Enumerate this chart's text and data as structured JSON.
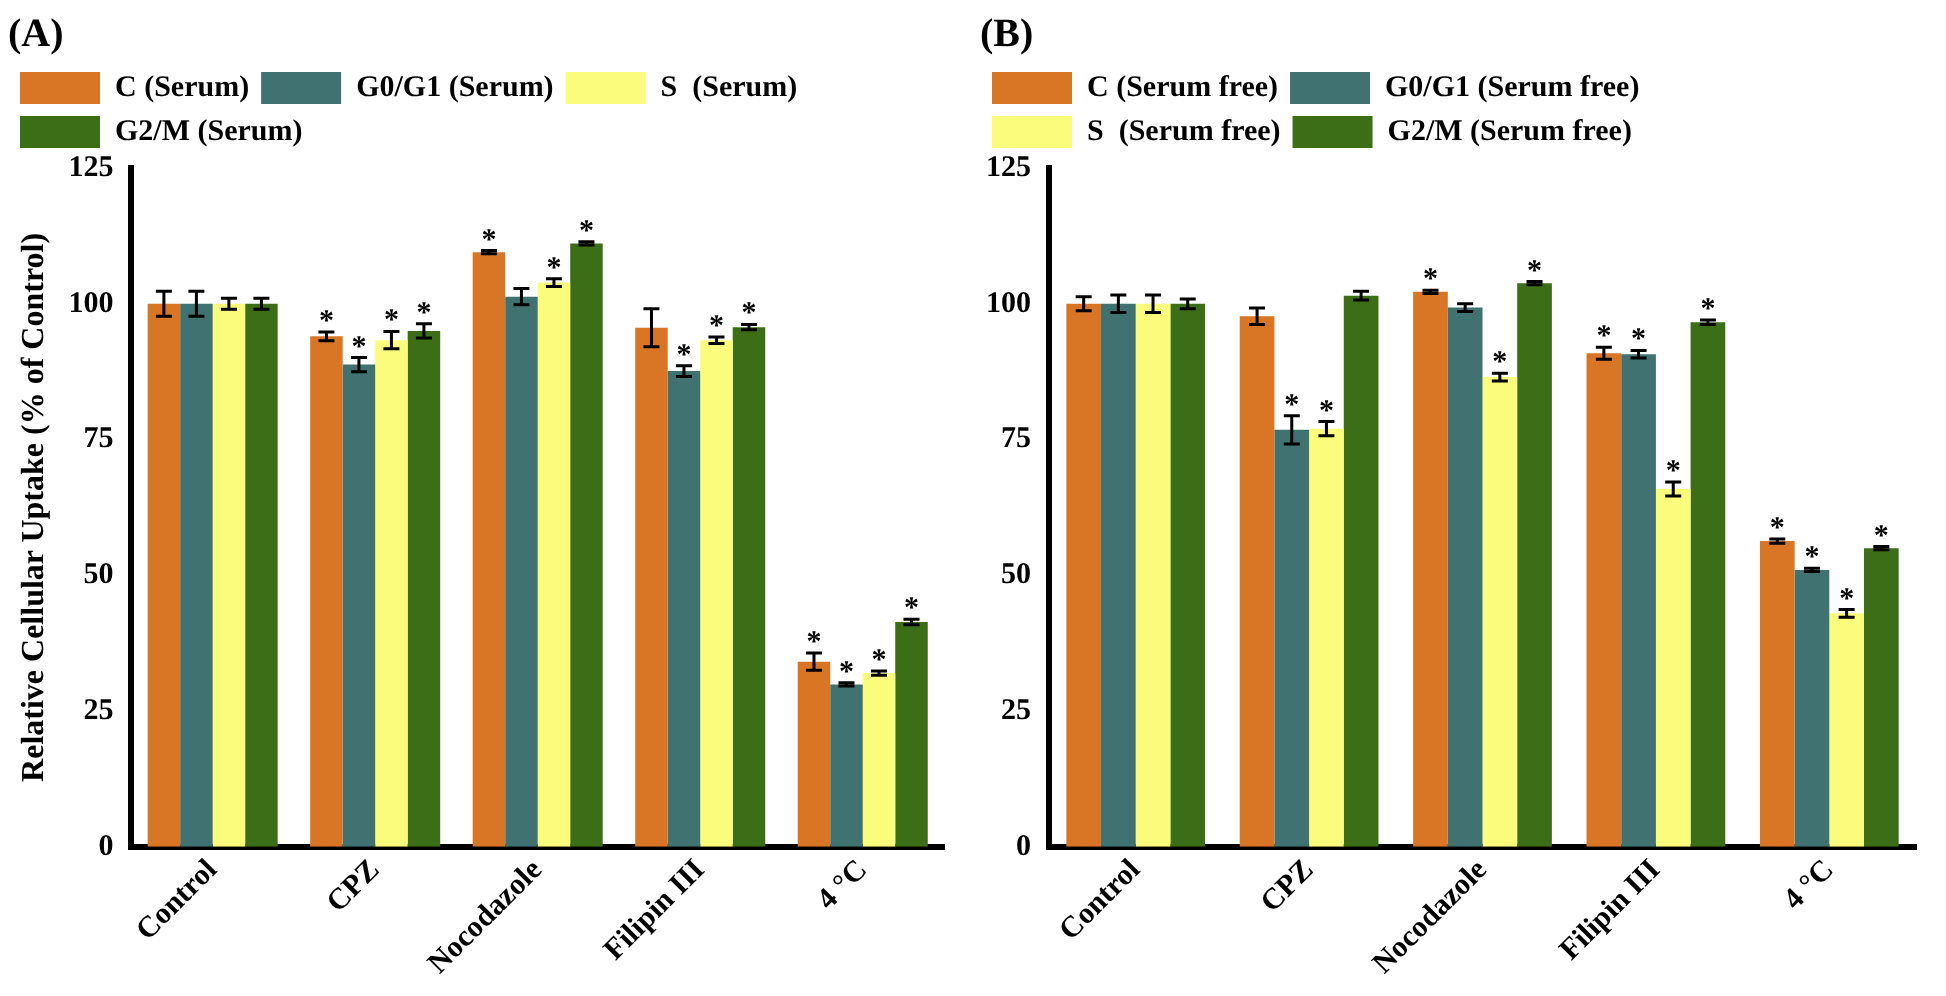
{
  "chart_data": [
    {
      "type": "bar",
      "title": "(A)",
      "ylabel": "Relative Cellular Uptake (% of Control)",
      "categories": [
        "Control",
        "CPZ",
        "Nocodazole",
        "Filipin III",
        "4 °C"
      ],
      "ylim": [
        0,
        125
      ],
      "yticks": [
        0,
        25,
        50,
        75,
        100,
        125
      ],
      "grid": false,
      "legend": "top left",
      "series": [
        {
          "name": "C (Serum)",
          "color": "#d97625",
          "values": [
            100,
            94.0,
            109.5,
            95.6,
            34.1
          ],
          "errors": [
            2.3,
            0.8,
            0.3,
            3.5,
            1.6
          ],
          "value_labels": [
            null,
            "*",
            "*",
            null,
            "*"
          ]
        },
        {
          "name": "G0/G1 (Serum)",
          "color": "#3f7270",
          "values": [
            100,
            88.8,
            101.3,
            87.6,
            29.9
          ],
          "errors": [
            2.3,
            1.3,
            1.5,
            1.0,
            0.3
          ],
          "value_labels": [
            null,
            "*",
            null,
            "*",
            "*"
          ]
        },
        {
          "name": "S  (Serum)",
          "color": "#fcfc7c",
          "values": [
            100,
            93.3,
            103.9,
            93.3,
            32.0
          ],
          "errors": [
            1.0,
            1.6,
            0.7,
            0.6,
            0.4
          ],
          "value_labels": [
            null,
            "*",
            "*",
            "*",
            "*"
          ]
        },
        {
          "name": "G2/M (Serum)",
          "color": "#3b6e17",
          "values": [
            100,
            95.0,
            111.1,
            95.7,
            41.4
          ],
          "errors": [
            1.0,
            1.3,
            0.3,
            0.5,
            0.5
          ],
          "value_labels": [
            null,
            "*",
            "*",
            "*",
            "*"
          ]
        }
      ]
    },
    {
      "type": "bar",
      "title": "(B)",
      "categories": [
        "Control",
        "CPZ",
        "Nocodazole",
        "Filipin III",
        "4 °C"
      ],
      "ylim": [
        0,
        125
      ],
      "yticks": [
        0,
        25,
        50,
        75,
        100,
        125
      ],
      "grid": false,
      "legend": "top left",
      "series": [
        {
          "name": "C (Serum free)",
          "color": "#d97625",
          "values": [
            100,
            97.7,
            102.2,
            90.9,
            56.3
          ],
          "errors": [
            1.3,
            1.5,
            0.3,
            1.1,
            0.4
          ],
          "value_labels": [
            null,
            null,
            "*",
            "*",
            "*"
          ]
        },
        {
          "name": "G0/G1 (Serum free)",
          "color": "#3f7270",
          "values": [
            100,
            76.8,
            99.3,
            90.7,
            51.0
          ],
          "errors": [
            1.6,
            2.6,
            0.7,
            0.7,
            0.3
          ],
          "value_labels": [
            null,
            "*",
            null,
            "*",
            "*"
          ]
        },
        {
          "name": "S  (Serum free)",
          "color": "#fcfc7c",
          "values": [
            100,
            77.0,
            86.5,
            65.9,
            43.0
          ],
          "errors": [
            1.6,
            1.3,
            0.7,
            1.3,
            0.7
          ],
          "value_labels": [
            null,
            "*",
            "*",
            "*",
            "*"
          ]
        },
        {
          "name": "G2/M (Serum free)",
          "color": "#3b6e17",
          "values": [
            100,
            101.5,
            103.8,
            96.6,
            55.0
          ],
          "errors": [
            0.9,
            0.8,
            0.3,
            0.4,
            0.3
          ],
          "value_labels": [
            null,
            null,
            "*",
            "*",
            "*"
          ]
        }
      ]
    }
  ]
}
